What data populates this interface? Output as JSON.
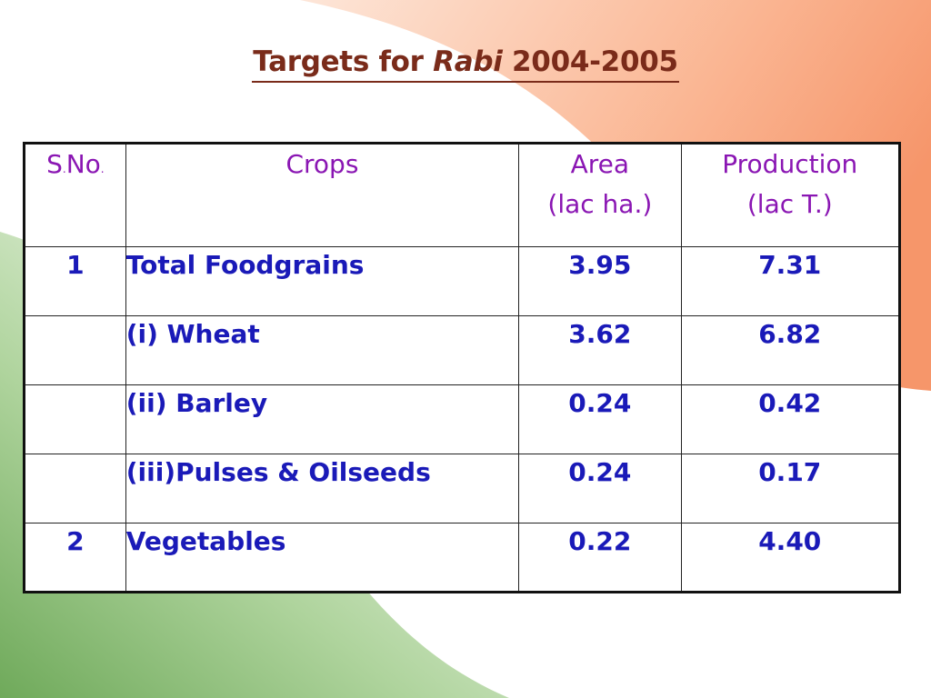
{
  "slide": {
    "title_prefix": "Targets for ",
    "title_italic": "Rabi",
    "title_suffix": " 2004-2005"
  },
  "table": {
    "headers": {
      "sno_s": "S",
      "sno_dot1": ".",
      "sno_no": "No",
      "sno_dot2": ".",
      "crops": "Crops",
      "area_line1": "Area",
      "area_line2": "(lac ha.)",
      "production_line1": "Production",
      "production_line2": "(lac T.)"
    },
    "rows": [
      {
        "sno": "1",
        "crop": "Total Foodgrains",
        "area": "3.95",
        "production": "7.31"
      },
      {
        "sno": "",
        "crop": "(i) Wheat",
        "area": "3.62",
        "production": "6.82"
      },
      {
        "sno": "",
        "crop": "(ii) Barley",
        "area": "0.24",
        "production": "0.42"
      },
      {
        "sno": "",
        "crop": "(iii)Pulses & Oilseeds",
        "area": "0.24",
        "production": "0.17"
      },
      {
        "sno": "2",
        "crop": "Vegetables",
        "area": "0.22",
        "production": "4.40"
      }
    ]
  },
  "colors": {
    "title": "#7a2b1a",
    "header_text": "#8a16b3",
    "body_text": "#1a1ab8",
    "saffron_band": "#f7a77a",
    "green_band": "#8fbf78"
  }
}
